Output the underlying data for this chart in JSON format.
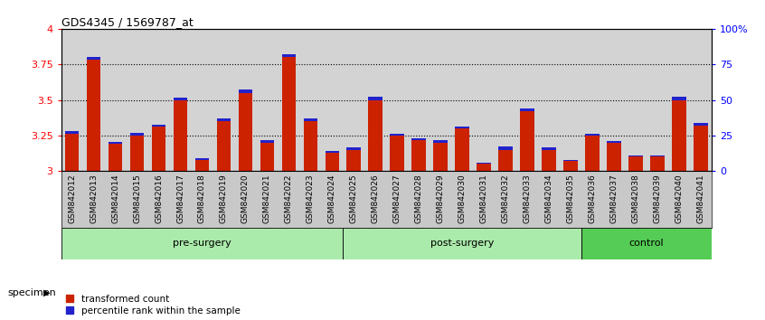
{
  "title": "GDS4345 / 1569787_at",
  "samples": [
    "GSM842012",
    "GSM842013",
    "GSM842014",
    "GSM842015",
    "GSM842016",
    "GSM842017",
    "GSM842018",
    "GSM842019",
    "GSM842020",
    "GSM842021",
    "GSM842022",
    "GSM842023",
    "GSM842024",
    "GSM842025",
    "GSM842026",
    "GSM842027",
    "GSM842028",
    "GSM842029",
    "GSM842030",
    "GSM842031",
    "GSM842032",
    "GSM842033",
    "GSM842034",
    "GSM842035",
    "GSM842036",
    "GSM842037",
    "GSM842038",
    "GSM842039",
    "GSM842040",
    "GSM842041"
  ],
  "red_values": [
    3.26,
    3.78,
    3.19,
    3.25,
    3.31,
    3.5,
    3.08,
    3.35,
    3.55,
    3.2,
    3.8,
    3.35,
    3.13,
    3.15,
    3.5,
    3.25,
    3.22,
    3.2,
    3.3,
    3.05,
    3.15,
    3.42,
    3.15,
    3.07,
    3.25,
    3.2,
    3.1,
    3.1,
    3.5,
    3.32
  ],
  "blue_values": [
    0.02,
    0.025,
    0.012,
    0.018,
    0.015,
    0.018,
    0.012,
    0.018,
    0.022,
    0.018,
    0.022,
    0.022,
    0.012,
    0.016,
    0.022,
    0.012,
    0.012,
    0.016,
    0.012,
    0.008,
    0.02,
    0.02,
    0.015,
    0.01,
    0.01,
    0.012,
    0.008,
    0.01,
    0.022,
    0.018
  ],
  "groups": [
    {
      "label": "pre-surgery",
      "start": 0,
      "end": 13
    },
    {
      "label": "post-surgery",
      "start": 13,
      "end": 24
    },
    {
      "label": "control",
      "start": 24,
      "end": 30
    }
  ],
  "group_colors": [
    "#AAEAAA",
    "#AAEAAA",
    "#55CC55"
  ],
  "ylim": [
    3.0,
    4.0
  ],
  "y2lim": [
    0,
    100
  ],
  "yticks": [
    3.0,
    3.25,
    3.5,
    3.75,
    4.0
  ],
  "ytick_labels": [
    "3",
    "3.25",
    "3.5",
    "3.75",
    "4"
  ],
  "y2ticks": [
    0,
    25,
    50,
    75,
    100
  ],
  "y2tick_labels": [
    "0",
    "25",
    "50",
    "75",
    "100%"
  ],
  "gridlines": [
    3.25,
    3.5,
    3.75
  ],
  "bar_color_red": "#CC2200",
  "bar_color_blue": "#2222CC",
  "bg_color": "#D3D3D3",
  "tick_area_color": "#C8C8C8",
  "legend_red": "transformed count",
  "legend_blue": "percentile rank within the sample"
}
